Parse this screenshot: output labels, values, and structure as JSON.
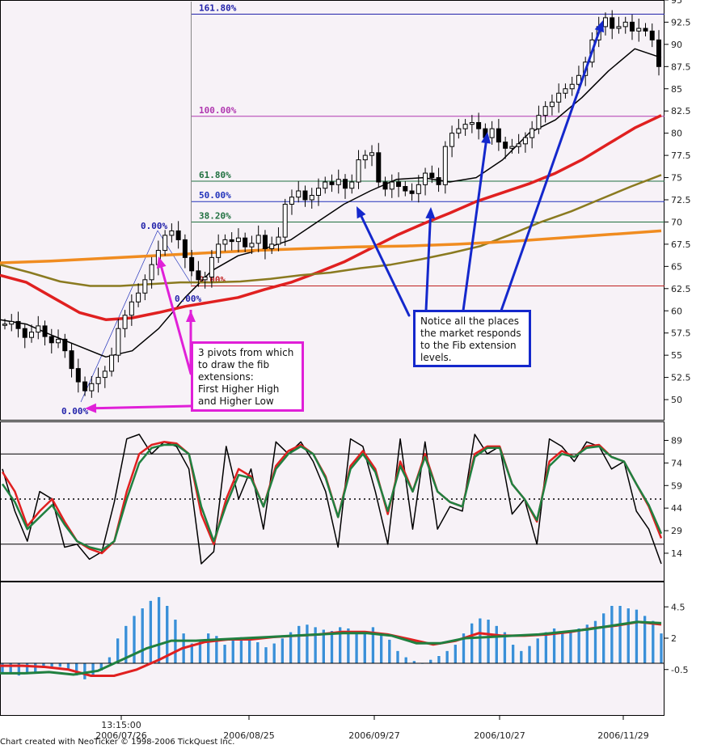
{
  "chart_data": [
    {
      "type": "candlestick",
      "panel": "price",
      "ylim": [
        47.5,
        95
      ],
      "y_ticks": [
        50,
        52.5,
        55,
        57.5,
        60,
        62.5,
        65,
        67.5,
        70,
        72.5,
        75,
        77.5,
        80,
        82.5,
        85,
        87.5,
        90,
        92.5,
        95
      ],
      "close_series": [
        58.5,
        58.8,
        58.0,
        57.0,
        57.6,
        58.3,
        57.1,
        56.4,
        56.8,
        55.5,
        53.5,
        52.0,
        51.0,
        51.8,
        52.5,
        53.2,
        55.0,
        58.0,
        59.5,
        61.0,
        62.0,
        63.5,
        65.2,
        66.8,
        68.5,
        69.0,
        68.0,
        66.0,
        64.5,
        63.5,
        63.8,
        66.0,
        67.5,
        68.0,
        67.8,
        68.2,
        67.2,
        67.6,
        68.5,
        67.0,
        67.5,
        68.3,
        72.0,
        72.8,
        73.5,
        72.5,
        73.0,
        73.8,
        74.5,
        74.2,
        74.8,
        73.8,
        74.5,
        77.0,
        77.5,
        77.8,
        74.5,
        73.7,
        74.5,
        74.0,
        73.5,
        73.2,
        74.2,
        75.5,
        75.0,
        74.2,
        78.5,
        80.0,
        80.5,
        81.0,
        81.2,
        80.5,
        79.5,
        80.5,
        79.0,
        78.3,
        78.5,
        78.8,
        79.5,
        80.5,
        82.0,
        83.0,
        83.5,
        84.5,
        85.0,
        85.5,
        86.5,
        88.0,
        90.5,
        92.0,
        93.0,
        91.8,
        92.0,
        92.5,
        91.5,
        91.8,
        91.5,
        90.5,
        87.5
      ],
      "fib_levels": [
        {
          "label": "161.80%",
          "value": 93.4,
          "color": "#2222aa"
        },
        {
          "label": "100.00%",
          "value": 81.9,
          "color": "#b038b0"
        },
        {
          "label": "61.80%",
          "value": 74.6,
          "color": "#207040"
        },
        {
          "label": "50.00%",
          "value": 72.3,
          "color": "#2233bb"
        },
        {
          "label": "38.20%",
          "value": 70.0,
          "color": "#207040"
        },
        {
          "label": "0.00%",
          "value": 62.8,
          "color": "#c02020"
        }
      ],
      "pivot_labels": [
        "0.00%",
        "0.00%",
        "0.00%"
      ],
      "moving_averages": [
        {
          "color": "#000000",
          "values": [
            59.0,
            58.5,
            57.2,
            56.0,
            54.8,
            55.5,
            58.0,
            61.5,
            64.5,
            66.2,
            67.0,
            68.0,
            70.0,
            72.0,
            73.5,
            74.8,
            75.0,
            74.5,
            75.0,
            77.0,
            80.0,
            81.5,
            84.0,
            87.0,
            89.5,
            88.5
          ]
        },
        {
          "color": "#e02020",
          "values": [
            64.0,
            63.2,
            61.5,
            59.8,
            59.0,
            59.2,
            59.8,
            60.5,
            61.0,
            61.5,
            62.4,
            63.2,
            64.3,
            65.5,
            67.0,
            68.5,
            69.8,
            71.0,
            72.3,
            73.3,
            74.3,
            75.5,
            77.0,
            78.8,
            80.6,
            82.0
          ]
        },
        {
          "color": "#8a7a20",
          "values": [
            65.2,
            64.3,
            63.3,
            62.8,
            62.8,
            63.0,
            63.2,
            63.2,
            63.3,
            63.6,
            64.0,
            64.3,
            64.8,
            65.2,
            65.8,
            66.5,
            67.3,
            68.6,
            70.0,
            71.2,
            72.6,
            74.0,
            75.3
          ]
        },
        {
          "color": "#f08c20",
          "values": [
            65.4,
            65.6,
            65.9,
            66.2,
            66.5,
            66.8,
            67.0,
            67.2,
            67.3,
            67.5,
            67.8,
            68.2,
            68.6,
            69.0
          ]
        }
      ]
    },
    {
      "type": "line",
      "panel": "oscillator",
      "ylim": [
        0,
        100
      ],
      "y_ticks": [
        14,
        29,
        44,
        59,
        74,
        89
      ],
      "hlines": [
        80,
        50,
        20
      ],
      "series": [
        {
          "color": "#000000",
          "values": [
            70,
            42,
            22,
            55,
            50,
            18,
            20,
            10,
            15,
            48,
            90,
            93,
            80,
            88,
            85,
            70,
            7,
            15,
            85,
            50,
            70,
            30,
            88,
            80,
            88,
            75,
            55,
            18,
            90,
            85,
            55,
            20,
            90,
            30,
            88,
            30,
            45,
            42,
            93,
            80,
            85,
            40,
            50,
            20,
            90,
            85,
            75,
            88,
            85,
            70,
            75,
            42,
            30,
            7
          ]
        },
        {
          "color": "#e02020",
          "values": [
            68,
            55,
            32,
            42,
            50,
            35,
            22,
            17,
            14,
            22,
            55,
            80,
            86,
            88,
            87,
            80,
            40,
            20,
            50,
            70,
            65,
            45,
            72,
            82,
            86,
            80,
            65,
            38,
            72,
            82,
            70,
            40,
            75,
            55,
            80,
            55,
            48,
            45,
            80,
            85,
            85,
            60,
            50,
            35,
            75,
            82,
            78,
            85,
            86,
            78,
            75,
            60,
            45,
            24
          ]
        },
        {
          "color": "#208040",
          "values": [
            60,
            48,
            30,
            38,
            46,
            33,
            22,
            18,
            16,
            22,
            50,
            74,
            84,
            86,
            86,
            80,
            45,
            22,
            46,
            66,
            64,
            45,
            70,
            80,
            85,
            80,
            64,
            38,
            70,
            80,
            68,
            42,
            72,
            55,
            78,
            55,
            48,
            45,
            78,
            84,
            84,
            60,
            50,
            36,
            72,
            80,
            78,
            84,
            85,
            78,
            75,
            60,
            46,
            27
          ]
        }
      ]
    },
    {
      "type": "bar",
      "panel": "histogram",
      "ylim": [
        -1.4,
        5.5
      ],
      "y_ticks": [
        -0.5,
        2,
        4.5
      ],
      "values": [
        -0.8,
        -0.9,
        -1.0,
        -0.9,
        -0.7,
        -0.4,
        -0.3,
        -0.3,
        -0.5,
        -1.0,
        -1.3,
        -1.1,
        -0.6,
        0.5,
        2.0,
        3.0,
        3.8,
        4.4,
        5.0,
        5.3,
        4.6,
        3.5,
        2.4,
        1.6,
        1.8,
        2.4,
        2.2,
        1.5,
        2.0,
        2.1,
        1.9,
        1.7,
        1.3,
        1.6,
        2.0,
        2.5,
        3.0,
        3.1,
        2.9,
        2.7,
        2.6,
        2.9,
        2.8,
        2.4,
        2.5,
        2.9,
        2.3,
        1.9,
        1.0,
        0.5,
        0.2,
        0.0,
        0.3,
        0.6,
        1.0,
        1.5,
        2.4,
        3.2,
        3.6,
        3.5,
        3.0,
        2.5,
        1.5,
        1.0,
        1.4,
        2.0,
        2.5,
        2.8,
        2.6,
        2.5,
        2.8,
        3.1,
        3.4,
        4.0,
        4.6,
        4.6,
        4.4,
        4.3,
        3.8,
        3.4,
        2.4
      ],
      "series": [
        {
          "color": "#e02020",
          "values": [
            -0.2,
            -0.2,
            -0.3,
            -0.5,
            -1.0,
            -1.0,
            -0.5,
            0.3,
            1.2,
            1.7,
            1.9,
            1.9,
            2.1,
            2.2,
            2.3,
            2.5,
            2.5,
            2.3,
            1.9,
            1.5,
            1.8,
            2.4,
            2.2,
            2.2,
            2.3,
            2.5,
            2.8,
            3.0,
            3.3,
            3.1
          ]
        },
        {
          "color": "#208040",
          "values": [
            -0.8,
            -0.8,
            -0.7,
            -0.9,
            -0.6,
            0.3,
            1.2,
            1.8,
            1.8,
            1.9,
            2.0,
            2.1,
            2.2,
            2.3,
            2.4,
            2.4,
            2.2,
            1.6,
            1.6,
            2.0,
            2.1,
            2.2,
            2.3,
            2.5,
            2.7,
            3.0,
            3.3,
            3.2
          ]
        }
      ]
    }
  ],
  "x_axis": {
    "time_label": "13:15:00",
    "dates": [
      "2006/07/26",
      "2006/08/25",
      "2006/09/27",
      "2006/10/27",
      "2006/11/29"
    ]
  },
  "annotations": {
    "fib_note": [
      "Notice all the places",
      "the market responds",
      "to the Fib extension",
      "levels."
    ],
    "pivot_note": [
      "3 pivots from which",
      "to draw the fib",
      "extensions:",
      "First Higher High",
      "and Higher Low"
    ]
  },
  "credit": "Chart created with NeoTicker © 1998-2006 TickQuest Inc."
}
